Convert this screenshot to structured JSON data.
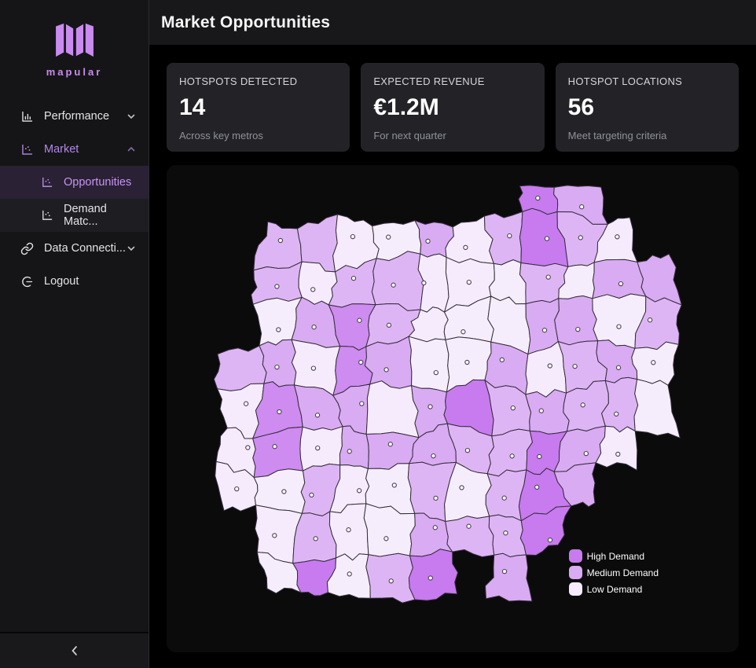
{
  "sidebar": {
    "logo_text": "mapular",
    "items": [
      {
        "label": "Performance"
      },
      {
        "label": "Market"
      },
      {
        "label": "Data Connecti..."
      },
      {
        "label": "Logout"
      }
    ],
    "submenu": [
      {
        "label": "Opportunities"
      },
      {
        "label": "Demand Matc..."
      }
    ]
  },
  "header": {
    "title": "Market Opportunities"
  },
  "stats": [
    {
      "label": "HOTSPOTS DETECTED",
      "value": "14",
      "sub": "Across key metros"
    },
    {
      "label": "EXPECTED REVENUE",
      "value": "€1.2M",
      "sub": "For next quarter"
    },
    {
      "label": "HOTSPOT LOCATIONS",
      "value": "56",
      "sub": "Meet targeting criteria"
    }
  ],
  "map": {
    "colors": {
      "high": "#c77bee",
      "medium": "#d9abf2",
      "low": "#f5ebfc"
    },
    "border_color": "#352d3c",
    "dot_fill": "#ffffff",
    "dot_stroke": "#4a3f52",
    "grid": [
      "........hm..",
      ".mmllmlmhml.",
      ".mlmmlllmlmm",
      ".lmhmlllmmlm",
      "mmlhmllmlmml",
      "lhmmlmhmmmml",
      "lhlmmmmmhml.",
      "llmllmlmhm..",
      ".lmllmmmh...",
      ".lhlmh.m...."
    ],
    "legend": [
      {
        "label": "High Demand",
        "color": "#c77bee"
      },
      {
        "label": "Medium Demand",
        "color": "#d9abf2"
      },
      {
        "label": "Low Demand",
        "color": "#f5ebfc"
      }
    ]
  }
}
